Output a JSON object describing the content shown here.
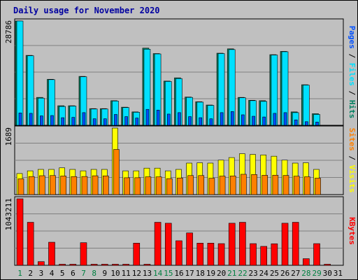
{
  "chart_data": {
    "type": "bar",
    "title": "Daily usage for November 2020",
    "categories": [
      "1",
      "2",
      "3",
      "4",
      "5",
      "6",
      "7",
      "8",
      "9",
      "10",
      "11",
      "12",
      "13",
      "14",
      "15",
      "16",
      "17",
      "18",
      "19",
      "20",
      "21",
      "22",
      "23",
      "24",
      "25",
      "26",
      "27",
      "28",
      "29",
      "30",
      "31"
    ],
    "weekend_days": [
      "1",
      "7",
      "8",
      "14",
      "15",
      "21",
      "22",
      "28",
      "29"
    ],
    "panels": [
      {
        "max_label": "28786",
        "ylim": [
          0,
          28786
        ],
        "side_labels": [
          "Pages",
          "Files",
          "Hits"
        ],
        "series": [
          {
            "name": "Hits",
            "color": "#008060",
            "values": [
              28786,
              19300,
              7700,
              12700,
              5400,
              5400,
              13500,
              4600,
              4600,
              6800,
              5000,
              3700,
              21300,
              19800,
              12200,
              13100,
              7800,
              6500,
              5600,
              19900,
              21100,
              7700,
              6900,
              6800,
              19500,
              20400,
              3700,
              11200,
              3200,
              0,
              0
            ]
          },
          {
            "name": "Files",
            "color": "#00e0ff",
            "values": [
              28786,
              19200,
              7500,
              12600,
              5200,
              5300,
              13400,
              4500,
              4500,
              6700,
              4900,
              3600,
              21000,
              19700,
              12100,
              12900,
              7700,
              6400,
              5500,
              19800,
              20900,
              7600,
              6800,
              6600,
              19400,
              20300,
              3500,
              11100,
              3000,
              0,
              0
            ]
          },
          {
            "name": "Pages",
            "color": "#0050ff",
            "values": [
              3400,
              3300,
              2600,
              2700,
              2100,
              2200,
              3500,
              1800,
              1800,
              3000,
              2400,
              2000,
              4400,
              4200,
              3100,
              3500,
              2400,
              2100,
              1800,
              3500,
              3800,
              2900,
              2500,
              2300,
              3300,
              3500,
              1500,
              1000,
              900,
              0,
              0
            ]
          }
        ]
      },
      {
        "max_label": "1689",
        "ylim": [
          0,
          1689
        ],
        "side_labels": [
          "Sites",
          "Visits"
        ],
        "series": [
          {
            "name": "Visits",
            "color": "#ffff00",
            "values": [
              535,
              603,
              640,
              640,
              680,
              640,
              603,
              640,
              640,
              1689,
              603,
              603,
              672,
              672,
              603,
              640,
              800,
              808,
              800,
              876,
              941,
              1039,
              1020,
              1008,
              975,
              876,
              800,
              808,
              640,
              0,
              0
            ]
          },
          {
            "name": "Sites",
            "color": "#ff8000",
            "values": [
              400,
              459,
              480,
              484,
              473,
              458,
              460,
              478,
              476,
              1147,
              428,
              429,
              452,
              451,
              406,
              422,
              484,
              484,
              416,
              470,
              474,
              516,
              510,
              491,
              493,
              486,
              468,
              453,
              418,
              0,
              0
            ]
          }
        ]
      },
      {
        "max_label": "1043211",
        "ylim": [
          0,
          1043211
        ],
        "side_labels": [
          "KBytes"
        ],
        "series": [
          {
            "name": "KBytes",
            "color": "#ff0000",
            "values": [
              1043211,
              675000,
              58000,
              362000,
              17000,
              17000,
              355000,
              17000,
              17000,
              17000,
              17000,
              348000,
              17000,
              675000,
              660000,
              385000,
              508000,
              348000,
              348000,
              340000,
              660000,
              675000,
              340000,
              297000,
              338000,
              660000,
              675000,
              104000,
              340000,
              17000,
              0
            ]
          }
        ]
      }
    ],
    "xlabel": "",
    "ylabel": ""
  }
}
